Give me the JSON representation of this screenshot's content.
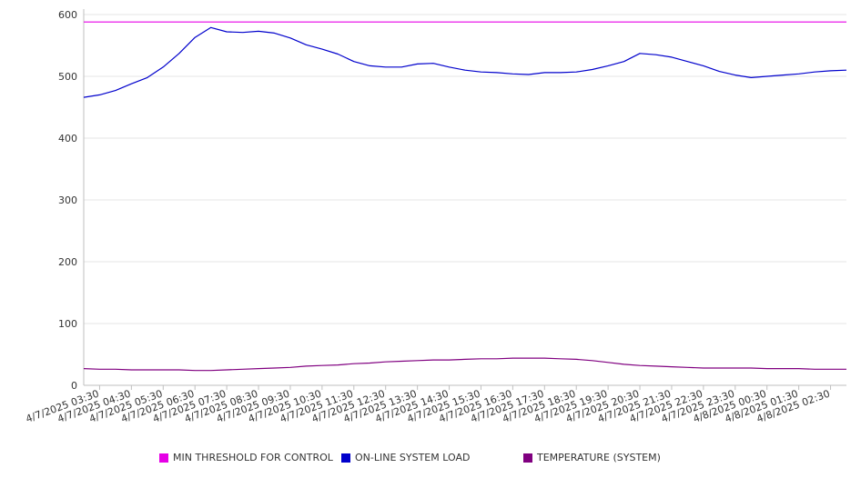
{
  "chart_data": {
    "type": "line",
    "title": "",
    "xlabel": "",
    "ylabel": "",
    "ylim": [
      0,
      600
    ],
    "yticks": [
      "0",
      "100",
      "200",
      "300",
      "400",
      "500",
      "600"
    ],
    "grid": true,
    "legend_position": "bottom",
    "x_ticks": [
      "4/7/2025 03:30",
      "4/7/2025 04:30",
      "4/7/2025 05:30",
      "4/7/2025 06:30",
      "4/7/2025 07:30",
      "4/7/2025 08:30",
      "4/7/2025 09:30",
      "4/7/2025 10:30",
      "4/7/2025 11:30",
      "4/7/2025 12:30",
      "4/7/2025 13:30",
      "4/7/2025 14:30",
      "4/7/2025 15:30",
      "4/7/2025 16:30",
      "4/7/2025 17:30",
      "4/7/2025 18:30",
      "4/7/2025 19:30",
      "4/7/2025 20:30",
      "4/7/2025 21:30",
      "4/7/2025 22:30",
      "4/7/2025 23:30",
      "4/8/2025 00:30",
      "4/8/2025 01:30",
      "4/8/2025 02:30"
    ],
    "x": [
      "4/7/2025 03:00",
      "4/7/2025 03:30",
      "4/7/2025 04:00",
      "4/7/2025 04:30",
      "4/7/2025 05:00",
      "4/7/2025 05:30",
      "4/7/2025 06:00",
      "4/7/2025 06:30",
      "4/7/2025 07:00",
      "4/7/2025 07:30",
      "4/7/2025 08:00",
      "4/7/2025 08:30",
      "4/7/2025 09:00",
      "4/7/2025 09:30",
      "4/7/2025 10:00",
      "4/7/2025 10:30",
      "4/7/2025 11:00",
      "4/7/2025 11:30",
      "4/7/2025 12:00",
      "4/7/2025 12:30",
      "4/7/2025 13:00",
      "4/7/2025 13:30",
      "4/7/2025 14:00",
      "4/7/2025 14:30",
      "4/7/2025 15:00",
      "4/7/2025 15:30",
      "4/7/2025 16:00",
      "4/7/2025 16:30",
      "4/7/2025 17:00",
      "4/7/2025 17:30",
      "4/7/2025 18:00",
      "4/7/2025 18:30",
      "4/7/2025 19:00",
      "4/7/2025 19:30",
      "4/7/2025 20:00",
      "4/7/2025 20:30",
      "4/7/2025 21:00",
      "4/7/2025 21:30",
      "4/7/2025 22:00",
      "4/7/2025 22:30",
      "4/7/2025 23:00",
      "4/7/2025 23:30",
      "4/8/2025 00:00",
      "4/8/2025 00:30",
      "4/8/2025 01:00",
      "4/8/2025 01:30",
      "4/8/2025 02:00",
      "4/8/2025 02:30",
      "4/8/2025 03:00"
    ],
    "series": [
      {
        "name": "MIN THRESHOLD FOR CONTROL",
        "color": "#e600e6",
        "values": [
          588,
          588,
          588,
          588,
          588,
          588,
          588,
          588,
          588,
          588,
          588,
          588,
          588,
          588,
          588,
          588,
          588,
          588,
          588,
          588,
          588,
          588,
          588,
          588,
          588,
          588,
          588,
          588,
          588,
          588,
          588,
          588,
          588,
          588,
          588,
          588,
          588,
          588,
          588,
          588,
          588,
          588,
          588,
          588,
          588,
          588,
          588,
          588,
          588
        ]
      },
      {
        "name": "ON-LINE SYSTEM LOAD",
        "color": "#0000cc",
        "values": [
          466,
          470,
          477,
          488,
          498,
          515,
          537,
          563,
          579,
          572,
          571,
          573,
          570,
          562,
          551,
          544,
          536,
          524,
          517,
          515,
          515,
          520,
          521,
          515,
          510,
          507,
          506,
          504,
          503,
          506,
          506,
          507,
          511,
          517,
          524,
          537,
          535,
          531,
          524,
          517,
          508,
          502,
          498,
          500,
          502,
          504,
          507,
          509,
          510
        ]
      },
      {
        "name": "TEMPERATURE (SYSTEM)",
        "color": "#800080",
        "values": [
          27,
          26,
          26,
          25,
          25,
          25,
          25,
          24,
          24,
          25,
          26,
          27,
          28,
          29,
          31,
          32,
          33,
          35,
          36,
          38,
          39,
          40,
          41,
          41,
          42,
          43,
          43,
          44,
          44,
          44,
          43,
          42,
          40,
          37,
          34,
          32,
          31,
          30,
          29,
          28,
          28,
          28,
          28,
          27,
          27,
          27,
          26,
          26,
          26
        ]
      }
    ]
  }
}
